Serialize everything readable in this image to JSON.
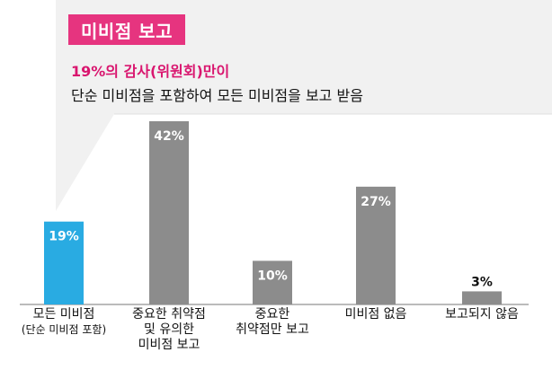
{
  "callout": {
    "badge": "미비점 보고",
    "headline": "19%의 감사(위원회)만이",
    "subline": "단순 미비점을 포함하여 모든 미비점을 보고 받음"
  },
  "colors": {
    "badge": "#e6347f",
    "headline": "#d9166f",
    "highlight_bar": "#29abe2",
    "bar": "#8c8c8c",
    "callout_bg": "#f2f2f2"
  },
  "chart_data": {
    "type": "bar",
    "title": "",
    "xlabel": "",
    "ylabel": "",
    "unit": "%",
    "ylim": [
      0,
      42
    ],
    "categories": [
      {
        "label": "모든 미비점",
        "note": "(단순 미비점 포함)"
      },
      {
        "label": "중요한 취약점 및 유의한 미비점 보고",
        "note": ""
      },
      {
        "label": "중요한 취약점만 보고",
        "note": ""
      },
      {
        "label": "미비점 없음",
        "note": ""
      },
      {
        "label": "보고되지 않음",
        "note": ""
      }
    ],
    "series": [
      {
        "values": [
          19,
          42,
          10,
          27,
          3
        ],
        "value_labels": [
          "19%",
          "42%",
          "10%",
          "27%",
          "3%"
        ]
      }
    ],
    "highlight_index": 0,
    "grid": false,
    "legend": "none"
  }
}
